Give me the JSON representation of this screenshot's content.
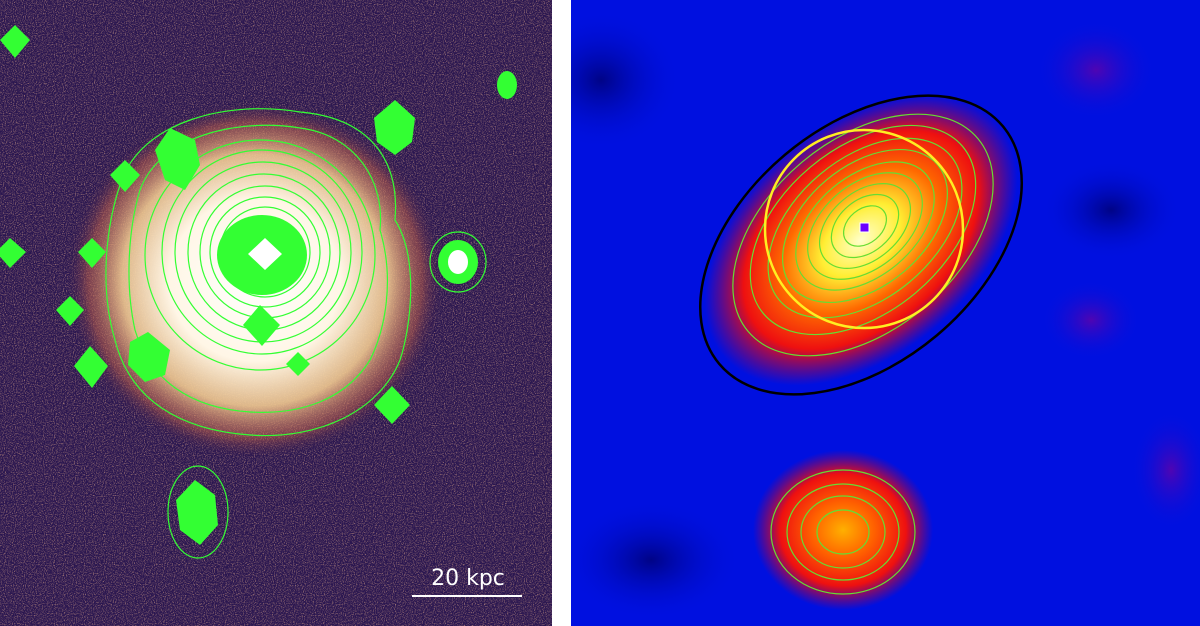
{
  "left_panel": {
    "scale_bar": {
      "label": "20 kpc"
    },
    "colors": {
      "background": "#2a1650",
      "contour": "#33ff33",
      "core": "#ffffff",
      "halo": "#e8c070"
    }
  },
  "right_panel": {
    "colors": {
      "background": "#0010e0",
      "contour": "#66dd33",
      "ellipse_outer": "#000000",
      "circle": "#ffee22",
      "source_marker": "#6a00ff"
    }
  }
}
